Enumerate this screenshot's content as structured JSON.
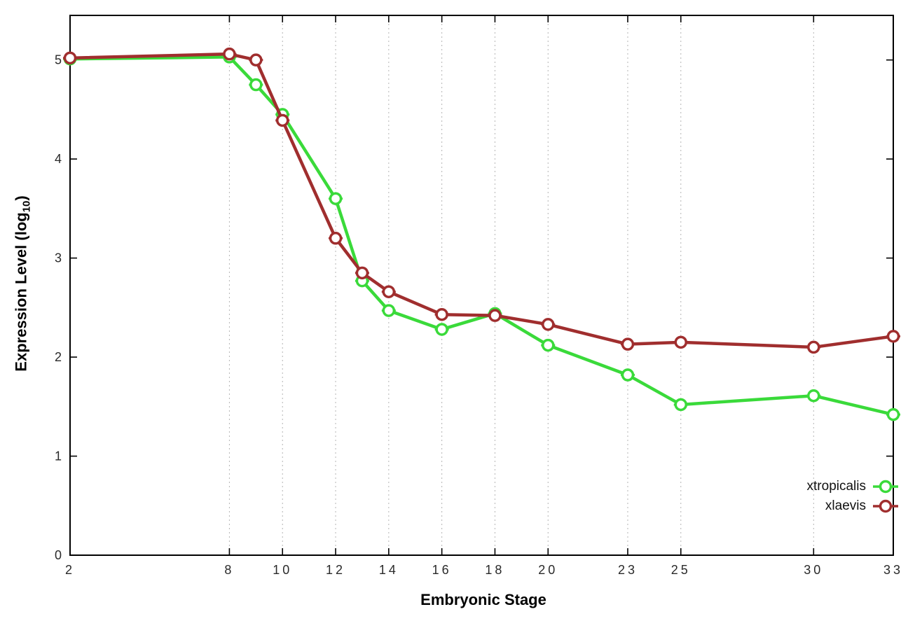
{
  "chart_data": {
    "type": "line",
    "title": "",
    "xlabel": "Embryonic Stage",
    "ylabel_prefix": "Expression Level (log",
    "ylabel_sub": "10",
    "ylabel_suffix": ")",
    "xlim": [
      2,
      33
    ],
    "ylim": [
      0,
      5.45
    ],
    "x_ticks": [
      2,
      8,
      10,
      12,
      14,
      16,
      18,
      20,
      23,
      25,
      30,
      33
    ],
    "y_ticks": [
      0,
      1,
      2,
      3,
      4,
      5
    ],
    "grid": "vertical-dotted",
    "legend_position": "bottom-right-inside",
    "marker": "open-circle-with-errorbar",
    "x": [
      2,
      8,
      9,
      10,
      12,
      13,
      14,
      16,
      18,
      20,
      23,
      25,
      30,
      33
    ],
    "series": [
      {
        "name": "xtropicalis",
        "color": "#3ada3a",
        "values": [
          5.01,
          5.03,
          4.75,
          4.45,
          3.6,
          2.77,
          2.47,
          2.28,
          2.44,
          2.12,
          1.82,
          1.52,
          1.61,
          1.42
        ]
      },
      {
        "name": "xlaevis",
        "color": "#a02e2e",
        "values": [
          5.02,
          5.06,
          5.0,
          4.39,
          3.2,
          2.85,
          2.66,
          2.43,
          2.42,
          2.33,
          2.13,
          2.15,
          2.1,
          2.21
        ]
      }
    ],
    "grid_color": "#b4b4b4",
    "axis_color": "#000000",
    "tick_label_color": "#2a2a2a"
  }
}
